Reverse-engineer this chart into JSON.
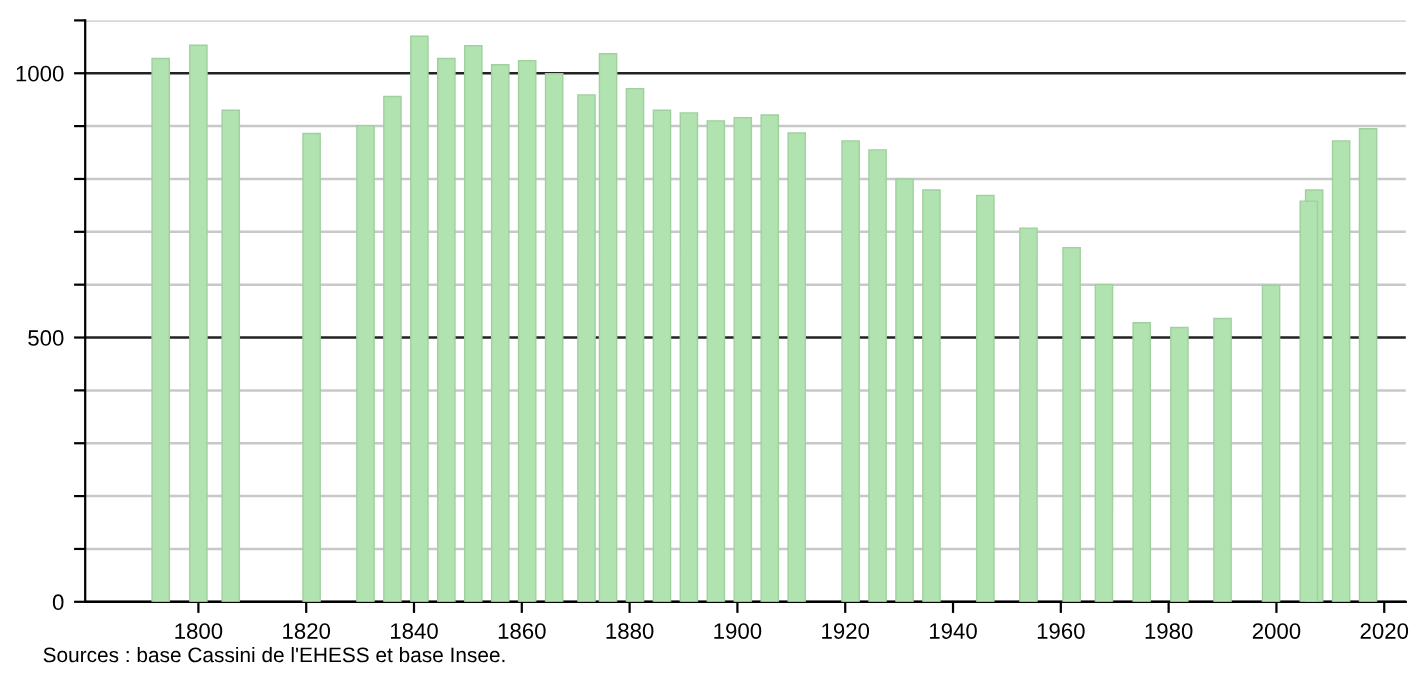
{
  "chart_data": {
    "type": "bar",
    "x": [
      1793,
      1800,
      1806,
      1821,
      1831,
      1836,
      1841,
      1846,
      1851,
      1856,
      1861,
      1866,
      1872,
      1876,
      1881,
      1886,
      1891,
      1896,
      1901,
      1906,
      1911,
      1921,
      1926,
      1931,
      1936,
      1946,
      1954,
      1962,
      1968,
      1975,
      1982,
      1990,
      1999,
      2006,
      2007,
      2012,
      2017
    ],
    "values": [
      1028,
      1053,
      930,
      886,
      901,
      956,
      1070,
      1028,
      1052,
      1016,
      1024,
      999,
      959,
      1037,
      971,
      930,
      925,
      910,
      916,
      921,
      887,
      872,
      855,
      800,
      779,
      769,
      707,
      670,
      600,
      528,
      519,
      536,
      599,
      758,
      779,
      872,
      895
    ],
    "color": "#b0e3b0",
    "xlim": [
      1779,
      2024
    ],
    "xticks": [
      1800,
      1820,
      1840,
      1860,
      1880,
      1900,
      1920,
      1940,
      1960,
      1980,
      2000,
      2020
    ],
    "ylim": [
      0,
      1100
    ],
    "yticks": [
      0,
      {
        "value": 100,
        "label": null
      },
      {
        "value": 200,
        "label": null
      },
      {
        "value": 300,
        "label": null
      },
      {
        "value": 400,
        "label": null
      },
      500,
      {
        "value": 600,
        "label": null
      },
      {
        "value": 700,
        "label": null
      },
      {
        "value": 800,
        "label": null
      },
      {
        "value": 900,
        "label": null
      },
      1000,
      {
        "value": 1100,
        "label": null
      }
    ],
    "grid": "y",
    "annotations": [
      "Sources : base Cassini de l'EHESS et base Insee."
    ]
  }
}
